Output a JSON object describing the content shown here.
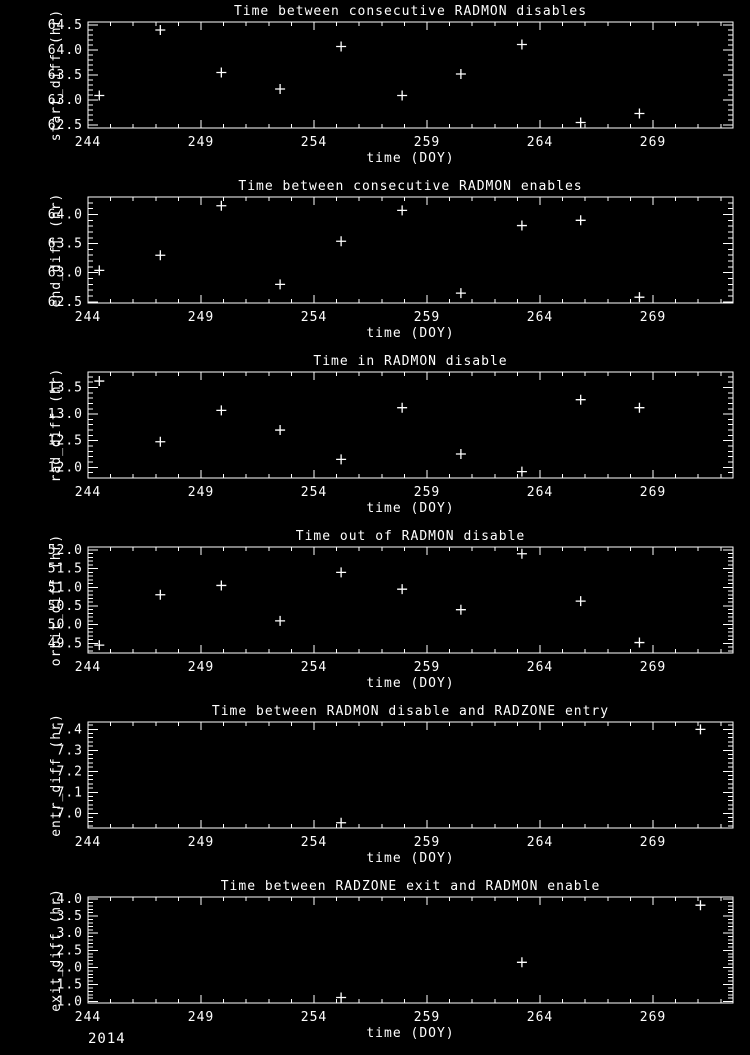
{
  "figure": {
    "background": "#000000",
    "foreground": "#ffffff",
    "year_label": "2014",
    "marker": "plus"
  },
  "chart_data": [
    {
      "type": "scatter",
      "title": "Time between consecutive RADMON disables",
      "ylabel": "start_diff (hr)",
      "xlabel": "time (DOY)",
      "xlim": [
        244,
        272.54
      ],
      "ylim": [
        62.44,
        64.56
      ],
      "xticks": [
        244,
        249,
        254,
        259,
        264,
        269
      ],
      "x_minor_step": 1,
      "yticks": [
        62.5,
        63.0,
        63.5,
        64.0,
        64.5
      ],
      "ytick_labels": [
        "62.5",
        "63.0",
        "63.5",
        "64.0",
        "64.5"
      ],
      "y_minor_step": 0.1,
      "x": [
        244.5,
        247.2,
        249.9,
        252.5,
        255.2,
        257.9,
        260.5,
        263.2,
        265.8,
        268.4
      ],
      "y": [
        63.09,
        64.4,
        63.55,
        63.22,
        64.07,
        63.09,
        63.52,
        64.11,
        62.55,
        62.73
      ]
    },
    {
      "type": "scatter",
      "title": "Time between consecutive RADMON enables",
      "ylabel": "end_diff (hr)",
      "xlabel": "time (DOY)",
      "xlim": [
        244,
        272.54
      ],
      "ylim": [
        62.48,
        64.3
      ],
      "xticks": [
        244,
        249,
        254,
        259,
        264,
        269
      ],
      "x_minor_step": 1,
      "yticks": [
        62.5,
        63.0,
        63.5,
        64.0
      ],
      "ytick_labels": [
        "62.5",
        "63.0",
        "63.5",
        "64.0"
      ],
      "y_minor_step": 0.1,
      "x": [
        244.5,
        247.2,
        249.9,
        252.5,
        255.2,
        257.9,
        260.5,
        263.2,
        265.8,
        268.4
      ],
      "y": [
        63.04,
        63.3,
        64.15,
        62.8,
        63.54,
        64.07,
        62.65,
        63.81,
        63.9,
        62.58
      ]
    },
    {
      "type": "scatter",
      "title": "Time in RADMON disable",
      "ylabel": "rad_diff (hr)",
      "xlabel": "time (DOY)",
      "xlim": [
        244,
        272.54
      ],
      "ylim": [
        11.8,
        13.79
      ],
      "xticks": [
        244,
        249,
        254,
        259,
        264,
        269
      ],
      "x_minor_step": 1,
      "yticks": [
        12.0,
        12.5,
        13.0,
        13.5
      ],
      "ytick_labels": [
        "12.0",
        "12.5",
        "13.0",
        "13.5"
      ],
      "y_minor_step": 0.1,
      "x": [
        244.5,
        247.2,
        249.9,
        252.5,
        255.2,
        257.9,
        260.5,
        263.2,
        265.8,
        268.4
      ],
      "y": [
        13.62,
        12.48,
        13.07,
        12.7,
        12.15,
        13.12,
        12.25,
        11.92,
        13.27,
        13.12
      ]
    },
    {
      "type": "scatter",
      "title": "Time out of RADMON disable",
      "ylabel": "orbit_diff (hr)",
      "xlabel": "time (DOY)",
      "xlim": [
        244,
        272.54
      ],
      "ylim": [
        49.24,
        52.08
      ],
      "xticks": [
        244,
        249,
        254,
        259,
        264,
        269
      ],
      "x_minor_step": 1,
      "yticks": [
        49.5,
        50.0,
        50.5,
        51.0,
        51.5,
        52.0
      ],
      "ytick_labels": [
        "49.5",
        "50.0",
        "50.5",
        "51.0",
        "51.5",
        "52.0"
      ],
      "y_minor_step": 0.1,
      "x": [
        244.5,
        247.2,
        249.9,
        252.5,
        255.2,
        257.9,
        260.5,
        263.2,
        265.8,
        268.4
      ],
      "y": [
        49.45,
        50.8,
        51.05,
        50.1,
        51.4,
        50.95,
        50.4,
        51.9,
        50.63,
        49.52
      ]
    },
    {
      "type": "scatter",
      "title": "Time between RADMON disable and RADZONE entry",
      "ylabel": "entr_diff (hr)",
      "xlabel": "time (DOY)",
      "xlim": [
        244,
        272.54
      ],
      "ylim": [
        6.93,
        7.435
      ],
      "xticks": [
        244,
        249,
        254,
        259,
        264,
        269
      ],
      "x_minor_step": 1,
      "yticks": [
        7.0,
        7.1,
        7.2,
        7.3,
        7.4
      ],
      "ytick_labels": [
        "7.0",
        "7.1",
        "7.2",
        "7.3",
        "7.4"
      ],
      "y_minor_step": 0.02,
      "x": [
        255.2,
        271.1
      ],
      "y": [
        6.955,
        7.4
      ]
    },
    {
      "type": "scatter",
      "title": "Time between RADZONE exit and RADMON enable",
      "ylabel": "exit_diff (hr)",
      "xlabel": "time (DOY)",
      "xlim": [
        244,
        272.54
      ],
      "ylim": [
        0.96,
        4.06
      ],
      "xticks": [
        244,
        249,
        254,
        259,
        264,
        269
      ],
      "x_minor_step": 1,
      "yticks": [
        1.0,
        1.5,
        2.0,
        2.5,
        3.0,
        3.5,
        4.0
      ],
      "ytick_labels": [
        "1.0",
        "1.5",
        "2.0",
        "2.5",
        "3.0",
        "3.5",
        "4.0"
      ],
      "y_minor_step": 0.1,
      "x": [
        255.2,
        263.2,
        271.1
      ],
      "y": [
        1.12,
        2.15,
        3.82
      ]
    }
  ]
}
